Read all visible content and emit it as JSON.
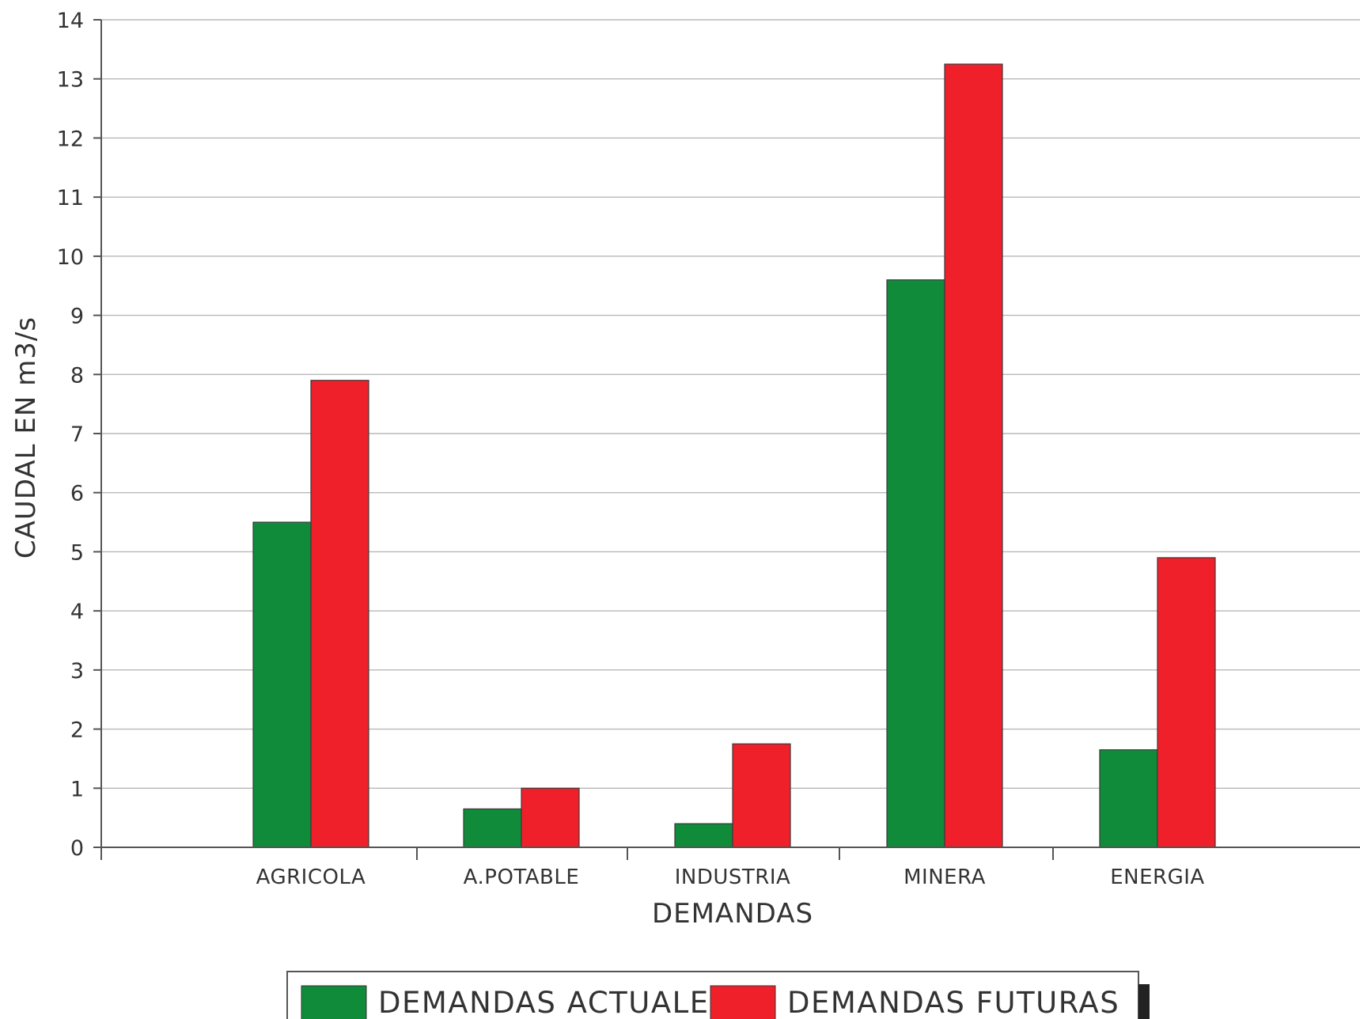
{
  "chart_data": {
    "type": "bar",
    "title": "",
    "xlabel": "DEMANDAS",
    "ylabel": "CAUDAL EN m3/s",
    "categories": [
      "AGRICOLA",
      "A.POTABLE",
      "INDUSTRIA",
      "MINERA",
      "ENERGIA"
    ],
    "series": [
      {
        "name": "DEMANDAS ACTUALES",
        "color": "#0f8b3a",
        "values": [
          5.5,
          0.65,
          0.4,
          9.6,
          1.65
        ]
      },
      {
        "name": "DEMANDAS FUTURAS",
        "color": "#f0202a",
        "values": [
          7.9,
          1.0,
          1.75,
          13.25,
          4.9
        ]
      }
    ],
    "ylim": [
      0,
      14
    ],
    "yticks": [
      0,
      1,
      2,
      3,
      4,
      5,
      6,
      7,
      8,
      9,
      10,
      11,
      12,
      13,
      14
    ],
    "grid": true,
    "legend_position": "bottom"
  }
}
